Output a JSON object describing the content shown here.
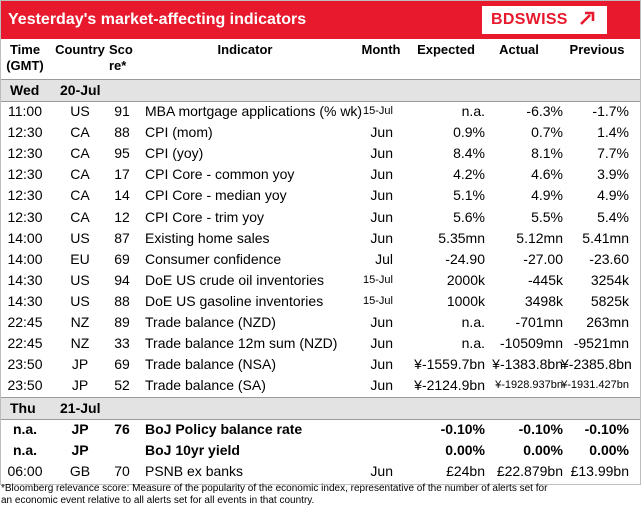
{
  "title": "Yesterday's market-affecting indicators",
  "logo": {
    "text": "BDSWISS",
    "icon": "bdswiss-arrow-mark"
  },
  "colors": {
    "brand_red": "#e8192c",
    "day_band": "#e3e3e3"
  },
  "columns": {
    "time": [
      "Time",
      "(GMT)"
    ],
    "country": "Country",
    "score": [
      "Sco",
      "re*"
    ],
    "indicator": "Indicator",
    "month": "Month",
    "expected": "Expected",
    "actual": "Actual",
    "previous": "Previous"
  },
  "days": [
    {
      "weekday": "Wed",
      "date": "20-Jul"
    },
    {
      "weekday": "Thu",
      "date": "21-Jul"
    }
  ],
  "rows_day1": [
    {
      "time": "11:00",
      "country": "US",
      "score": "91",
      "indicator": "MBA mortgage applications (% wk)",
      "month": "15-Jul",
      "expected": "n.a.",
      "actual": "-6.3%",
      "previous": "-1.7%"
    },
    {
      "time": "12:30",
      "country": "CA",
      "score": "88",
      "indicator": "CPI (mom)",
      "month": "Jun",
      "expected": "0.9%",
      "actual": "0.7%",
      "previous": "1.4%"
    },
    {
      "time": "12:30",
      "country": "CA",
      "score": "95",
      "indicator": "CPI (yoy)",
      "month": "Jun",
      "expected": "8.4%",
      "actual": "8.1%",
      "previous": "7.7%"
    },
    {
      "time": "12:30",
      "country": "CA",
      "score": "17",
      "indicator": "CPI Core - common yoy",
      "month": "Jun",
      "expected": "4.2%",
      "actual": "4.6%",
      "previous": "3.9%"
    },
    {
      "time": "12:30",
      "country": "CA",
      "score": "14",
      "indicator": "CPI Core - median yoy",
      "month": "Jun",
      "expected": "5.1%",
      "actual": "4.9%",
      "previous": "4.9%"
    },
    {
      "time": "12:30",
      "country": "CA",
      "score": "12",
      "indicator": "CPI Core - trim yoy",
      "month": "Jun",
      "expected": "5.6%",
      "actual": "5.5%",
      "previous": "5.4%"
    },
    {
      "time": "14:00",
      "country": "US",
      "score": "87",
      "indicator": "Existing home sales",
      "month": "Jun",
      "expected": "5.35mn",
      "actual": "5.12mn",
      "previous": "5.41mn"
    },
    {
      "time": "14:00",
      "country": "EU",
      "score": "69",
      "indicator": "Consumer confidence",
      "month": "Jul",
      "expected": "-24.90",
      "actual": "-27.00",
      "previous": "-23.60"
    },
    {
      "time": "14:30",
      "country": "US",
      "score": "94",
      "indicator": "DoE US crude oil inventories",
      "month": "15-Jul",
      "expected": "2000k",
      "actual": "-445k",
      "previous": "3254k"
    },
    {
      "time": "14:30",
      "country": "US",
      "score": "88",
      "indicator": "DoE US gasoline inventories",
      "month": "15-Jul",
      "expected": "1000k",
      "actual": "3498k",
      "previous": "5825k"
    },
    {
      "time": "22:45",
      "country": "NZ",
      "score": "89",
      "indicator": "Trade balance (NZD)",
      "month": "Jun",
      "expected": "n.a.",
      "actual": "-701mn",
      "previous": "263mn"
    },
    {
      "time": "22:45",
      "country": "NZ",
      "score": "33",
      "indicator": "Trade balance 12m sum (NZD)",
      "month": "Jun",
      "expected": "n.a.",
      "actual": "-10509mn",
      "previous": "-9521mn"
    },
    {
      "time": "23:50",
      "country": "JP",
      "score": "69",
      "indicator": "Trade balance (NSA)",
      "month": "Jun",
      "expected": "¥-1559.7bn",
      "actual": "¥-1383.8bn",
      "previous": "¥-2385.8bn"
    },
    {
      "time": "23:50",
      "country": "JP",
      "score": "52",
      "indicator": "Trade balance (SA)",
      "month": "Jun",
      "expected": "¥-2124.9bn",
      "actual": "¥-1928.937bn",
      "previous": "¥-1931.427bn"
    }
  ],
  "rows_day2": [
    {
      "time": "n.a.",
      "country": "JP",
      "score": "76",
      "indicator": "BoJ  Policy balance rate",
      "month": "",
      "expected": "-0.10%",
      "actual": "-0.10%",
      "previous": "-0.10%"
    },
    {
      "time": "n.a.",
      "country": "JP",
      "score": "",
      "indicator": "BoJ 10yr yield",
      "month": "",
      "expected": "0.00%",
      "actual": "0.00%",
      "previous": "0.00%"
    },
    {
      "time": "06:00",
      "country": "GB",
      "score": "70",
      "indicator": "PSNB ex banks",
      "month": "Jun",
      "expected": "£24bn",
      "actual": "£22.879bn",
      "previous": "£13.99bn"
    }
  ],
  "footnote": "*Bloomberg relevance score:  Measure of the popularity of the economic index, representative of the number of alerts set for an economic event relative to all alerts set for all events in that country."
}
